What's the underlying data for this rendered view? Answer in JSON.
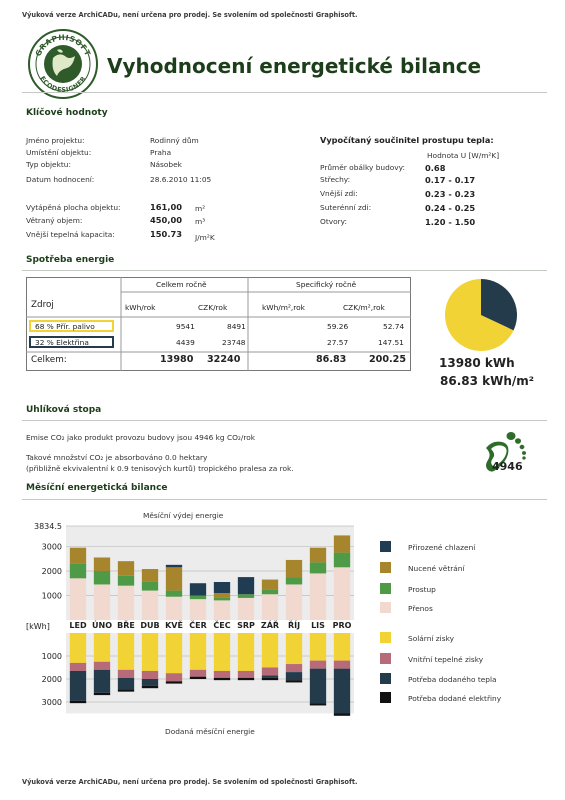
{
  "notice_top": "Výuková verze ArchiCADu, není určena pro prodej. Se svolením od společnosti Graphisoft.",
  "logo": {
    "top_text": "GRAPHISOFT",
    "bottom_text": "ECODESIGNER"
  },
  "title": "Vyhodnocení energetické bilance",
  "key_values": {
    "heading": "Klíčové hodnoty",
    "rows": [
      {
        "label": "Jméno projektu:",
        "value": "Rodinný dům"
      },
      {
        "label": "Umístění objektu:",
        "value": "Praha"
      },
      {
        "label": "Typ objektu:",
        "value": "Násobek"
      },
      {
        "label": "Datum hodnocení:",
        "value": "28.6.2010 11:05"
      }
    ],
    "metrics": [
      {
        "label": "Vytápěná plocha objektu:",
        "value": "161,00",
        "unit": "m²"
      },
      {
        "label": "Větraný objem:",
        "value": "450,00",
        "unit": "m³"
      },
      {
        "label": "Vnější tepelná kapacita:",
        "value": "150.73",
        "unit": "J/m²K"
      }
    ]
  },
  "u_values": {
    "heading": "Vypočítaný součinitel prostupu tepla:",
    "unit_header": "Hodnota U [W/m²K]",
    "rows": [
      {
        "label": "Průměr obálky budovy:",
        "value": "0.68"
      },
      {
        "label": "Střechy:",
        "value": "0.17 - 0.17"
      },
      {
        "label": "Vnější zdi:",
        "value": "0.23 - 0.23"
      },
      {
        "label": "Suterénní zdi:",
        "value": "0.24 - 0.25"
      },
      {
        "label": "Otvory:",
        "value": "1.20 - 1.50"
      }
    ]
  },
  "consumption": {
    "heading": "Spotřeba energie",
    "group1": "Celkem ročně",
    "group2": "Specifický ročně",
    "col_source": "Zdroj",
    "cols": [
      "kWh/rok",
      "CZK/rok",
      "kWh/m²,rok",
      "CZK/m²,rok"
    ],
    "rows": [
      {
        "name": "68 % Přír. palivo",
        "values": [
          "9541",
          "8491",
          "59.26",
          "52.74"
        ],
        "color": "#f2d335"
      },
      {
        "name": "32 % Elektřina",
        "values": [
          "4439",
          "23748",
          "27.57",
          "147.51"
        ],
        "color": "#243b4c"
      }
    ],
    "total": {
      "name": "Celkem:",
      "values": [
        "13980",
        "32240",
        "86.83",
        "200.25"
      ]
    },
    "pie": [
      {
        "label": "Přír. palivo",
        "percent": 68,
        "color": "#f2d335"
      },
      {
        "label": "Elektřina",
        "percent": 32,
        "color": "#243b4c"
      }
    ],
    "total_kwh": "13980 kWh",
    "specific": "86.83 kWh/m²"
  },
  "carbon": {
    "heading": "Uhlíková stopa",
    "line1": "Emise CO₂ jako produkt provozu budovy jsou 4946 kg CO₂/rok",
    "line2": "Takové množství CO₂ je absorbováno 0.0 hektary",
    "line3": "(přibližně ekvivalentní k 0.9 tenisových kurtů) tropického pralesa za rok.",
    "footprint_value": "4946",
    "footprint_color": "#2f6b2a"
  },
  "monthly": {
    "heading": "Měsíční energetická bilance",
    "top_title": "Měsíční výdej energie",
    "bottom_title": "Dodaná měsíční energie",
    "unit": "[kWh]",
    "top_ticks": [
      "3834.5",
      "3000",
      "2000",
      "1000"
    ],
    "bottom_ticks": [
      "1000",
      "2000",
      "3000"
    ],
    "months": [
      "LED",
      "ÚNO",
      "BŘE",
      "DUB",
      "KVĚ",
      "ČER",
      "ČEC",
      "SRP",
      "ZÁŘ",
      "ŘÍJ",
      "LIS",
      "PRO"
    ],
    "legend_top": [
      {
        "label": "Přirozené chlazení",
        "color": "#1f3c52"
      },
      {
        "label": "Nucené větrání",
        "color": "#a7852d"
      },
      {
        "label": "Prostup",
        "color": "#4e9a46"
      },
      {
        "label": "Přenos",
        "color": "#f2d9d0"
      }
    ],
    "legend_bottom": [
      {
        "label": "Solární zisky",
        "color": "#f2d335"
      },
      {
        "label": "Vnitřní tepelné zisky",
        "color": "#b76a78"
      },
      {
        "label": "Potřeba dodaného tepla",
        "color": "#243b4c"
      },
      {
        "label": "Potřeba dodané elektřiny",
        "color": "#111111"
      }
    ]
  },
  "chart_data": [
    {
      "type": "bar",
      "title": "Měsíční výdej energie",
      "ylabel": "[kWh]",
      "categories": [
        "LED",
        "ÚNO",
        "BŘE",
        "DUB",
        "KVĚ",
        "ČER",
        "ČEC",
        "SRP",
        "ZÁŘ",
        "ŘÍJ",
        "LIS",
        "PRO"
      ],
      "ylim": [
        0,
        3834.5
      ],
      "stacked": true,
      "series": [
        {
          "name": "Přenos",
          "color": "#f2d9d0",
          "values": [
            1700,
            1450,
            1400,
            1200,
            950,
            850,
            800,
            900,
            1050,
            1450,
            1900,
            2150
          ]
        },
        {
          "name": "Prostup",
          "color": "#4e9a46",
          "values": [
            600,
            550,
            400,
            380,
            250,
            150,
            100,
            150,
            200,
            300,
            450,
            600
          ]
        },
        {
          "name": "Nucené větrání",
          "color": "#a7852d",
          "values": [
            650,
            550,
            600,
            500,
            950,
            0,
            200,
            0,
            400,
            700,
            600,
            700
          ]
        },
        {
          "name": "Přirozené chlazení",
          "color": "#1f3c52",
          "values": [
            0,
            0,
            0,
            0,
            100,
            500,
            450,
            700,
            0,
            0,
            0,
            0
          ]
        }
      ]
    },
    {
      "type": "bar",
      "title": "Dodaná měsíční energie",
      "ylabel": "[kWh]",
      "categories": [
        "LED",
        "ÚNO",
        "BŘE",
        "DUB",
        "KVĚ",
        "ČER",
        "ČEC",
        "SRP",
        "ZÁŘ",
        "ŘÍJ",
        "LIS",
        "PRO"
      ],
      "ylim": [
        0,
        3500
      ],
      "stacked": true,
      "direction": "down",
      "series": [
        {
          "name": "Solární zisky",
          "color": "#f2d335",
          "values": [
            1300,
            1250,
            1600,
            1650,
            1750,
            1600,
            1650,
            1650,
            1500,
            1350,
            1200,
            1200
          ]
        },
        {
          "name": "Vnitřní tepelné zisky",
          "color": "#b76a78",
          "values": [
            350,
            350,
            350,
            350,
            350,
            300,
            300,
            300,
            350,
            350,
            350,
            350
          ]
        },
        {
          "name": "Potřeba dodaného tepla",
          "color": "#243b4c",
          "values": [
            1300,
            1000,
            500,
            300,
            0,
            0,
            0,
            0,
            100,
            350,
            1500,
            1950
          ]
        },
        {
          "name": "Potřeba dodané elektřiny",
          "color": "#111111",
          "values": [
            100,
            100,
            100,
            100,
            100,
            100,
            100,
            100,
            100,
            100,
            100,
            100
          ]
        }
      ]
    },
    {
      "type": "pie",
      "categories": [
        "Přír. palivo",
        "Elektřina"
      ],
      "values": [
        68,
        32
      ]
    }
  ],
  "notice_bottom": "Výuková verze ArchiCADu, není určena pro prodej. Se svolením od společnosti Graphisoft."
}
